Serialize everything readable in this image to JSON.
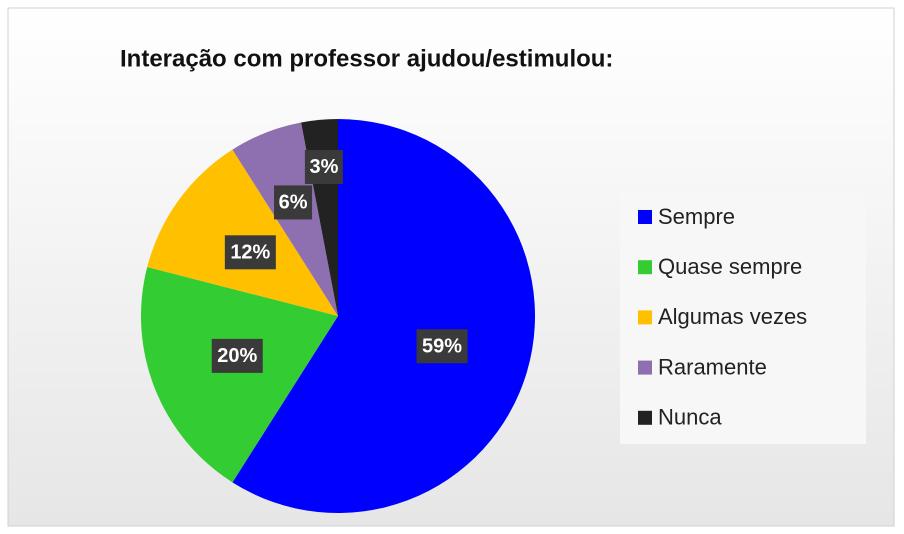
{
  "chart_data": {
    "type": "pie",
    "title": "Interação com professor ajudou/estimulou:",
    "categories": [
      "Sempre",
      "Quase sempre",
      "Algumas vezes",
      "Raramente",
      "Nunca"
    ],
    "values": [
      59,
      20,
      12,
      6,
      3
    ],
    "value_labels": [
      "59%",
      "20%",
      "12%",
      "6%",
      "3%"
    ],
    "colors": [
      "#0000ff",
      "#33cc33",
      "#ffc000",
      "#8e6fb0",
      "#222222"
    ],
    "legend": "right"
  }
}
